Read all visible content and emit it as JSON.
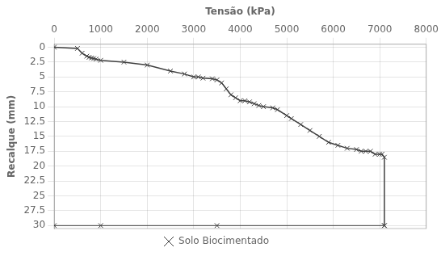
{
  "chart_data": {
    "type": "line",
    "x_label": "Tensão (kPa)",
    "y_label": "Recalque (mm)",
    "series": [
      {
        "name": "Solo Biocimentado",
        "color": "#404040",
        "marker": "x",
        "x": [
          0,
          500,
          600,
          700,
          750,
          800,
          850,
          900,
          1000,
          1500,
          2000,
          2500,
          2800,
          3000,
          3100,
          3200,
          3400,
          3500,
          3600,
          3700,
          3800,
          3900,
          4000,
          4100,
          4200,
          4300,
          4400,
          4500,
          4700,
          4800,
          5000,
          5100,
          5300,
          5500,
          5700,
          5900,
          6100,
          6300,
          6500,
          6600,
          6700,
          6800,
          6900,
          7000,
          7050,
          7100,
          7100
        ],
        "values": [
          0,
          0.2,
          1.0,
          1.5,
          1.7,
          1.8,
          1.9,
          2.0,
          2.2,
          2.5,
          3.0,
          4.0,
          4.5,
          5.0,
          5.0,
          5.2,
          5.3,
          5.5,
          6.0,
          7.0,
          8.0,
          8.5,
          9.0,
          9.0,
          9.2,
          9.5,
          9.8,
          10.0,
          10.2,
          10.5,
          11.5,
          12.0,
          13.0,
          14.0,
          15.0,
          16.0,
          16.5,
          17.0,
          17.2,
          17.5,
          17.5,
          17.5,
          18.0,
          18.0,
          18.0,
          18.5,
          30.0
        ]
      },
      {
        "color": "#404040",
        "marker": "x",
        "x": [
          0,
          1000,
          3500,
          7100
        ],
        "values": [
          30.0,
          30.0,
          30.0,
          30.0
        ]
      }
    ],
    "xlim": [
      0,
      8000
    ],
    "ylim": [
      30.5,
      -0.5
    ],
    "xticks": [
      0,
      1000,
      2000,
      3000,
      4000,
      5000,
      6000,
      7000,
      8000
    ],
    "yticks": [
      0,
      2.5,
      5,
      7.5,
      10,
      12.5,
      15,
      17.5,
      20,
      22.5,
      25,
      27.5,
      30
    ],
    "grid": true,
    "legend": "bottom"
  }
}
